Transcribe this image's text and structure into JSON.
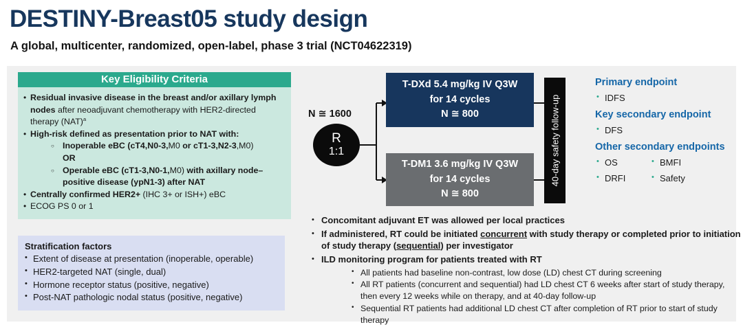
{
  "page": {
    "title": "DESTINY-Breast05 study design",
    "subtitle": "A global, multicenter, randomized, open-label, phase 3 trial (NCT04622319)"
  },
  "colors": {
    "title_navy": "#17375D",
    "teal_header": "#2BA98D",
    "teal_body": "#CBE8DF",
    "lavender": "#D9DEF2",
    "navy_box": "#17365D",
    "gray_box": "#6A6D70",
    "black": "#0B0B0B",
    "endpoint_blue": "#1667A8",
    "panel_gray": "#F0F0F0"
  },
  "eligibility": {
    "header": "Key Eligibility Criteria",
    "items": [
      {
        "segments": [
          {
            "t": "Residual invasive disease in the breast and/or axillary lymph nodes",
            "b": true
          },
          {
            "t": " after neoadjuvant chemotherapy with HER2-directed therapy (NAT)",
            "b": false
          },
          {
            "t": "a",
            "b": false,
            "sup": true
          }
        ]
      },
      {
        "segments": [
          {
            "t": "High-risk defined as presentation prior to NAT with:",
            "b": true
          }
        ],
        "sub": [
          {
            "segments": [
              {
                "t": "Inoperable eBC (cT4,N0-3,",
                "b": true
              },
              {
                "t": "M0",
                "b": false
              },
              {
                "t": " or cT1-3,N2-3",
                "b": true
              },
              {
                "t": ",M0)",
                "b": false
              },
              {
                "t": "\nOR",
                "b": true
              }
            ]
          },
          {
            "segments": [
              {
                "t": "Operable eBC (cT1-3,N0-1,",
                "b": true
              },
              {
                "t": "M0)",
                "b": false
              },
              {
                "t": " with axillary node–positive disease (ypN1-3) after NAT",
                "b": true
              }
            ]
          }
        ]
      },
      {
        "segments": [
          {
            "t": "Centrally confirmed HER2+",
            "b": true
          },
          {
            "t": " (IHC 3+ or ISH+) eBC",
            "b": false
          }
        ]
      },
      {
        "segments": [
          {
            "t": "ECOG PS 0 or 1",
            "b": false
          }
        ]
      }
    ]
  },
  "stratification": {
    "header": "Stratification factors",
    "items": [
      "Extent of disease at presentation (inoperable, operable)",
      "HER2-targeted NAT (single, dual)",
      "Hormone receptor status (positive, negative)",
      "Post-NAT pathologic nodal status (positive, negative)"
    ]
  },
  "randomization": {
    "n_label": "N ≅ 1600",
    "r": "R",
    "ratio": "1:1",
    "arms": [
      {
        "name": "T-DXd",
        "lines": [
          "T-DXd 5.4 mg/kg IV Q3W",
          "for 14 cycles",
          "N ≅ 800"
        ],
        "color": "#17365D"
      },
      {
        "name": "T-DM1",
        "lines": [
          "T-DM1 3.6 mg/kg IV Q3W",
          "for 14 cycles",
          "N ≅ 800"
        ],
        "color": "#6A6D70"
      }
    ],
    "followup": "40-day safety follow-up"
  },
  "endpoints": {
    "sections": [
      {
        "heading": "Primary endpoint",
        "items": [
          "IDFS"
        ]
      },
      {
        "heading": "Key secondary endpoint",
        "items": [
          "DFS"
        ]
      },
      {
        "heading": "Other secondary endpoints",
        "items": [
          "OS",
          "DRFI"
        ],
        "items_col2": [
          "BMFI",
          "Safety"
        ]
      }
    ]
  },
  "notes": {
    "bullets": [
      {
        "segments": [
          {
            "t": "Concomitant adjuvant ET was allowed per local practices",
            "b": true
          }
        ]
      },
      {
        "segments": [
          {
            "t": "If administered, RT could be initiated ",
            "b": true
          },
          {
            "t": "concurrent",
            "b": true,
            "u": true
          },
          {
            "t": " with study therapy or completed prior to initiation of study therapy (",
            "b": true
          },
          {
            "t": "sequential",
            "b": true,
            "u": true
          },
          {
            "t": ") per investigator",
            "b": true
          }
        ]
      },
      {
        "segments": [
          {
            "t": "ILD monitoring program for patients treated with RT",
            "b": true
          }
        ],
        "sub": [
          {
            "segments": [
              {
                "t": "All patients had baseline non-contrast, low dose (LD) chest CT during screening",
                "b": false
              }
            ]
          },
          {
            "segments": [
              {
                "t": "All RT patients (concurrent and sequential) had LD chest CT 6 weeks after start of study therapy, then every 12 weeks while on therapy, and at 40-day follow-up",
                "b": false
              }
            ]
          },
          {
            "segments": [
              {
                "t": "Sequential RT patients had additional LD chest CT after completion of RT prior to start of study therapy",
                "b": false
              }
            ]
          }
        ]
      }
    ]
  }
}
